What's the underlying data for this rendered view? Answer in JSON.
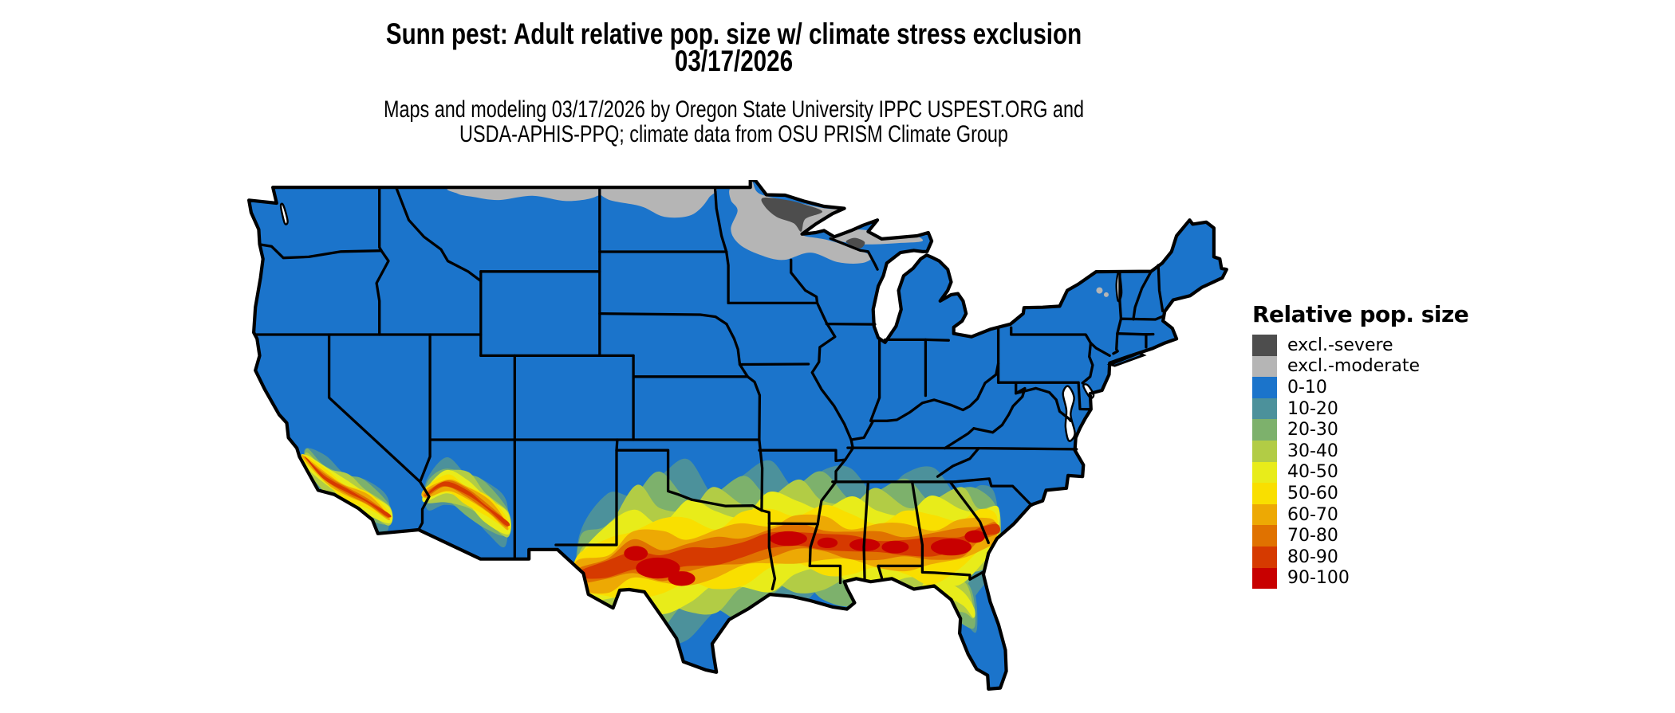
{
  "header": {
    "title_line1": "Sunn pest: Adult relative pop. size w/ climate stress exclusion",
    "title_line2": "03/17/2026",
    "subtitle_line1": "Maps and modeling 03/17/2026 by Oregon State University IPPC USPEST.ORG and",
    "subtitle_line2": "USDA-APHIS-PPQ; climate data from OSU PRISM Climate Group"
  },
  "legend": {
    "title": "Relative pop. size",
    "items": [
      {
        "label": "excl.-severe",
        "color": "#4d4d4d"
      },
      {
        "label": "excl.-moderate",
        "color": "#b5b5b5"
      },
      {
        "label": "0-10",
        "color": "#1b74cb"
      },
      {
        "label": "10-20",
        "color": "#4c919b"
      },
      {
        "label": "20-30",
        "color": "#7db16c"
      },
      {
        "label": "30-40",
        "color": "#b2cc45"
      },
      {
        "label": "40-50",
        "color": "#e8ec1a"
      },
      {
        "label": "50-60",
        "color": "#f9df00"
      },
      {
        "label": "60-70",
        "color": "#eda904"
      },
      {
        "label": "70-80",
        "color": "#e07200"
      },
      {
        "label": "80-90",
        "color": "#d63a00"
      },
      {
        "label": "90-100",
        "color": "#c80000"
      }
    ]
  },
  "map": {
    "background_color": "#ffffff",
    "outline_color": "#000000",
    "state_border_color": "#000000",
    "base_category": "0-10"
  }
}
